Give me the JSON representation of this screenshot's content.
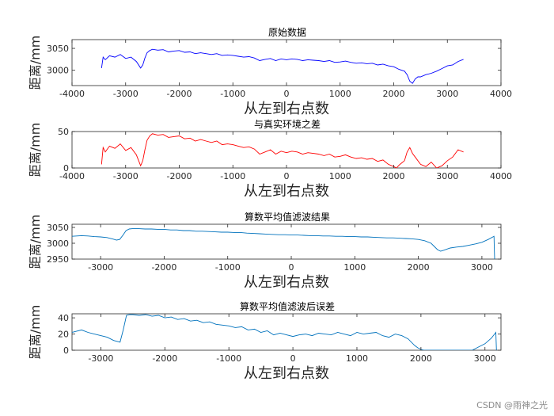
{
  "watermark": "CSDN @雨神之光",
  "chart_data": [
    {
      "type": "line",
      "title": "原始数据",
      "xlabel": "从左到右点数",
      "ylabel": "距离/mm",
      "xlim": [
        -4000,
        4000
      ],
      "ylim": [
        2965,
        3070
      ],
      "xticks": [
        -4000,
        -3000,
        -2000,
        -1000,
        0,
        1000,
        2000,
        3000,
        4000
      ],
      "yticks": [
        3000,
        3050
      ],
      "color": "#0000ff",
      "series": [
        {
          "x": [
            -3450,
            -3420,
            -3380,
            -3300,
            -3200,
            -3100,
            -3000,
            -2900,
            -2800,
            -2720,
            -2680,
            -2640,
            -2600,
            -2550,
            -2500,
            -2400,
            -2300,
            -2200,
            -2100,
            -2000,
            -1900,
            -1800,
            -1700,
            -1600,
            -1500,
            -1400,
            -1300,
            -1200,
            -1100,
            -1000,
            -900,
            -800,
            -700,
            -600,
            -500,
            -400,
            -300,
            -200,
            -100,
            0,
            100,
            200,
            300,
            400,
            500,
            600,
            700,
            800,
            900,
            1000,
            1100,
            1200,
            1300,
            1400,
            1500,
            1600,
            1700,
            1800,
            1900,
            2000,
            2100,
            2200,
            2250,
            2300,
            2350,
            2400,
            2450,
            2500,
            2600,
            2700,
            2800,
            2900,
            3000,
            3100,
            3200,
            3300
          ],
          "y": [
            3005,
            3030,
            3024,
            3033,
            3030,
            3036,
            3027,
            3030,
            3020,
            3005,
            3012,
            3028,
            3040,
            3045,
            3048,
            3046,
            3047,
            3042,
            3044,
            3045,
            3041,
            3042,
            3038,
            3040,
            3038,
            3036,
            3038,
            3034,
            3035,
            3034,
            3032,
            3030,
            3031,
            3028,
            3022,
            3025,
            3027,
            3022,
            3026,
            3024,
            3026,
            3025,
            3022,
            3024,
            3023,
            3022,
            3020,
            3022,
            3018,
            3019,
            3021,
            3018,
            3016,
            3017,
            3015,
            3016,
            3012,
            3014,
            3010,
            3008,
            3002,
            2998,
            2990,
            2975,
            2970,
            2980,
            2985,
            2985,
            2990,
            2993,
            2998,
            3004,
            3010,
            3012,
            3020,
            3025
          ]
        }
      ]
    },
    {
      "type": "line",
      "title": "与真实环境之差",
      "xlabel": "从左到右点数",
      "ylabel": "距离/mm",
      "xlim": [
        -4000,
        4000
      ],
      "ylim": [
        0,
        50
      ],
      "xticks": [
        -4000,
        -3000,
        -2000,
        -1000,
        0,
        1000,
        2000,
        3000,
        4000
      ],
      "yticks": [
        0,
        50
      ],
      "color": "#ff0000",
      "series": [
        {
          "x": [
            -3450,
            -3420,
            -3380,
            -3300,
            -3200,
            -3100,
            -3000,
            -2900,
            -2800,
            -2720,
            -2680,
            -2640,
            -2600,
            -2550,
            -2500,
            -2400,
            -2300,
            -2200,
            -2100,
            -2000,
            -1900,
            -1800,
            -1700,
            -1600,
            -1500,
            -1400,
            -1300,
            -1200,
            -1100,
            -1000,
            -900,
            -800,
            -700,
            -600,
            -500,
            -400,
            -300,
            -200,
            -100,
            0,
            100,
            200,
            300,
            400,
            500,
            600,
            700,
            800,
            900,
            1000,
            1100,
            1200,
            1300,
            1400,
            1500,
            1600,
            1700,
            1800,
            1900,
            2000,
            2050,
            2100,
            2200,
            2250,
            2300,
            2350,
            2400,
            2500,
            2600,
            2700,
            2800,
            2900,
            3000,
            3100,
            3200,
            3300
          ],
          "y": [
            5,
            28,
            22,
            30,
            27,
            33,
            24,
            28,
            18,
            3,
            10,
            25,
            38,
            44,
            47,
            45,
            46,
            42,
            43,
            44,
            40,
            41,
            37,
            39,
            37,
            35,
            37,
            32,
            33,
            32,
            30,
            28,
            29,
            26,
            19,
            22,
            25,
            19,
            23,
            21,
            23,
            22,
            19,
            21,
            20,
            19,
            17,
            19,
            15,
            16,
            18,
            15,
            13,
            14,
            12,
            13,
            9,
            11,
            5,
            2,
            0,
            4,
            10,
            22,
            28,
            20,
            15,
            5,
            2,
            8,
            0,
            3,
            10,
            15,
            25,
            22
          ]
        }
      ]
    },
    {
      "type": "line",
      "title": "算数平均值滤波结果",
      "xlabel": "从左到右点数",
      "ylabel": "距离/mm",
      "xlim": [
        -3450,
        3300
      ],
      "ylim": [
        2950,
        3060
      ],
      "xticks": [
        -3000,
        -2000,
        -1000,
        0,
        1000,
        2000,
        3000
      ],
      "yticks": [
        2950,
        3000,
        3050
      ],
      "color": "#0072bd",
      "series": [
        {
          "x": [
            -3450,
            -3300,
            -3200,
            -3100,
            -3000,
            -2900,
            -2800,
            -2750,
            -2700,
            -2650,
            -2600,
            -2550,
            -2500,
            -2400,
            -2300,
            -2200,
            -2100,
            -2000,
            -1900,
            -1800,
            -1700,
            -1600,
            -1500,
            -1400,
            -1300,
            -1200,
            -1100,
            -1000,
            -900,
            -800,
            -700,
            -600,
            -500,
            -400,
            -300,
            -200,
            -100,
            0,
            100,
            200,
            300,
            400,
            500,
            600,
            700,
            800,
            900,
            1000,
            1100,
            1200,
            1300,
            1400,
            1500,
            1600,
            1700,
            1800,
            1900,
            2000,
            2100,
            2200,
            2250,
            2300,
            2350,
            2400,
            2500,
            2600,
            2700,
            2800,
            2900,
            3000,
            3100,
            3190,
            3195,
            3200
          ],
          "y": [
            3022,
            3024,
            3023,
            3021,
            3020,
            3018,
            3013,
            3010,
            3012,
            3025,
            3040,
            3045,
            3046,
            3046,
            3045,
            3045,
            3044,
            3044,
            3042,
            3042,
            3040,
            3040,
            3038,
            3038,
            3037,
            3036,
            3035,
            3035,
            3034,
            3034,
            3032,
            3031,
            3030,
            3029,
            3028,
            3027,
            3027,
            3026,
            3026,
            3025,
            3024,
            3024,
            3023,
            3023,
            3022,
            3022,
            3021,
            3021,
            3020,
            3020,
            3019,
            3018,
            3017,
            3017,
            3016,
            3015,
            3014,
            3012,
            3008,
            3000,
            2990,
            2980,
            2975,
            2978,
            2985,
            2988,
            2990,
            2994,
            2998,
            3003,
            3012,
            3022,
            2980,
            2950
          ]
        }
      ]
    },
    {
      "type": "line",
      "title": "算数平均值滤波后误差",
      "xlabel": "从左到右点数",
      "ylabel": "距离/mm",
      "xlim": [
        -3450,
        3250
      ],
      "ylim": [
        0,
        45
      ],
      "xticks": [
        -3000,
        -2000,
        -1000,
        0,
        1000,
        2000,
        3000
      ],
      "yticks": [
        0,
        20,
        40
      ],
      "color": "#0072bd",
      "series": [
        {
          "x": [
            -3450,
            -3300,
            -3200,
            -3100,
            -3000,
            -2900,
            -2800,
            -2700,
            -2650,
            -2600,
            -2550,
            -2500,
            -2400,
            -2300,
            -2200,
            -2100,
            -2000,
            -1900,
            -1800,
            -1700,
            -1600,
            -1500,
            -1400,
            -1300,
            -1200,
            -1100,
            -1000,
            -900,
            -800,
            -700,
            -600,
            -500,
            -400,
            -300,
            -200,
            -100,
            0,
            100,
            200,
            300,
            400,
            500,
            600,
            700,
            800,
            900,
            1000,
            1100,
            1200,
            1300,
            1400,
            1500,
            1600,
            1700,
            1800,
            1900,
            1950,
            2000,
            2050,
            2800,
            2850,
            2900,
            3000,
            3100,
            3150,
            3170,
            3180
          ],
          "y": [
            22,
            25,
            22,
            20,
            18,
            16,
            12,
            10,
            25,
            43,
            44,
            44,
            43,
            44,
            42,
            43,
            40,
            41,
            38,
            39,
            36,
            37,
            34,
            35,
            32,
            31,
            30,
            28,
            29,
            25,
            26,
            22,
            24,
            19,
            21,
            19,
            17,
            19,
            20,
            18,
            21,
            20,
            19,
            22,
            20,
            18,
            22,
            20,
            21,
            22,
            18,
            16,
            20,
            18,
            14,
            6,
            3,
            1,
            0,
            0,
            2,
            4,
            8,
            15,
            20,
            22,
            0
          ]
        }
      ]
    }
  ]
}
